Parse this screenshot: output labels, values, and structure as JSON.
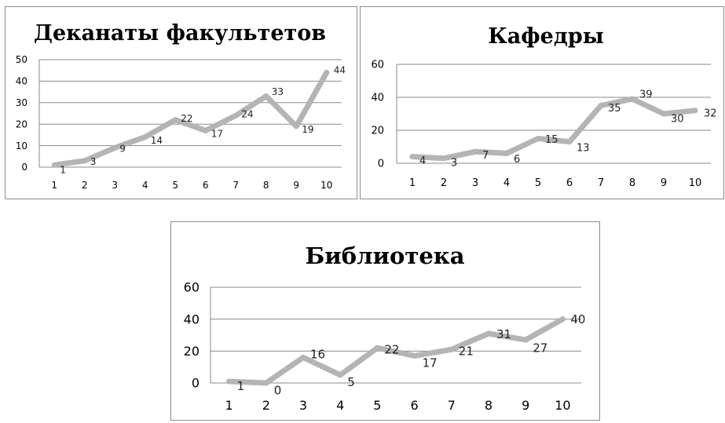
{
  "chart_data": [
    {
      "type": "line",
      "title": "Деканаты факультетов",
      "categories": [
        "1",
        "2",
        "3",
        "4",
        "5",
        "6",
        "7",
        "8",
        "9",
        "10"
      ],
      "values": [
        1,
        3,
        9,
        14,
        22,
        17,
        24,
        33,
        19,
        44
      ],
      "data_labels": [
        "1",
        "3",
        "9",
        "14",
        "22",
        "17",
        "24",
        "33",
        "19",
        "44"
      ],
      "yticks": [
        "0",
        "10",
        "20",
        "30",
        "40",
        "50"
      ],
      "ylim": [
        0,
        50
      ],
      "grid": true,
      "legend": "none",
      "line_color": "#b4b4b4"
    },
    {
      "type": "line",
      "title": "Кафедры",
      "categories": [
        "1",
        "2",
        "3",
        "4",
        "5",
        "6",
        "7",
        "8",
        "9",
        "10"
      ],
      "values": [
        4,
        3,
        7,
        6,
        15,
        13,
        35,
        39,
        30,
        32
      ],
      "data_labels": [
        "4",
        "3",
        "7",
        "6",
        "15",
        "13",
        "35",
        "39",
        "30",
        "32"
      ],
      "yticks": [
        "0",
        "20",
        "40",
        "60"
      ],
      "ylim": [
        0,
        60
      ],
      "grid": true,
      "legend": "none",
      "line_color": "#b4b4b4"
    },
    {
      "type": "line",
      "title": "Библиотека",
      "categories": [
        "1",
        "2",
        "3",
        "4",
        "5",
        "6",
        "7",
        "8",
        "9",
        "10"
      ],
      "values": [
        1,
        0,
        16,
        5,
        22,
        17,
        21,
        31,
        27,
        40
      ],
      "data_labels": [
        "1",
        "0",
        "16",
        "5",
        "22",
        "17",
        "21",
        "31",
        "27",
        "40"
      ],
      "yticks": [
        "0",
        "20",
        "40",
        "60"
      ],
      "ylim": [
        0,
        60
      ],
      "grid": true,
      "legend": "none",
      "line_color": "#b4b4b4"
    }
  ]
}
